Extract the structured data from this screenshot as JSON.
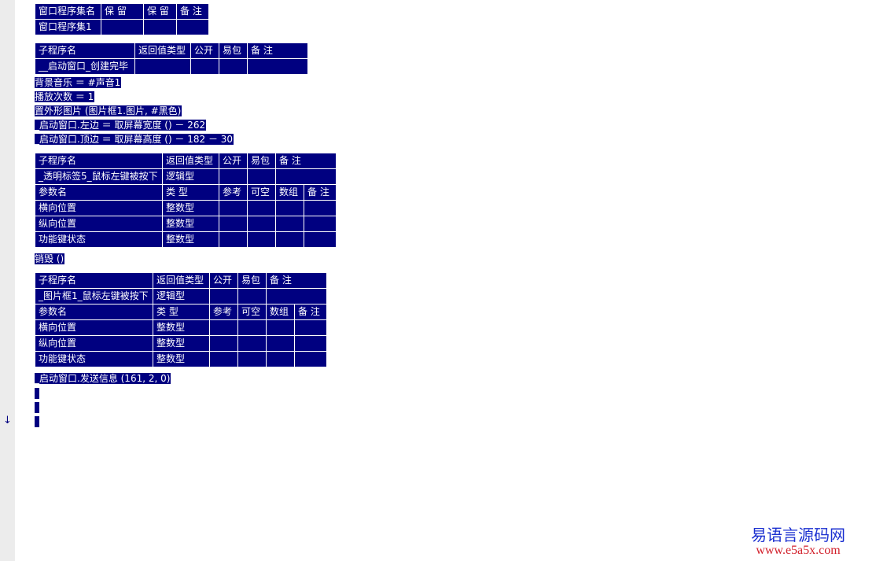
{
  "assembly_table": {
    "headers": [
      "窗口程序集名",
      "保 留",
      "保 留",
      "备 注"
    ],
    "row": [
      "窗口程序集1",
      "",
      "",
      ""
    ]
  },
  "sub1": {
    "headers": [
      "子程序名",
      "返回值类型",
      "公开",
      "易包",
      "备 注"
    ],
    "row": [
      "__启动窗口_创建完毕",
      "",
      "",
      "",
      ""
    ]
  },
  "code1": [
    "背景音乐 ＝ #声音1",
    "播放次数 ＝ 1",
    "置外形图片 (图片框1.图片, #黑色)",
    "_启动窗口.左边 ＝ 取屏幕宽度 () － 262",
    "_启动窗口.顶边 ＝ 取屏幕高度 () － 182 － 30"
  ],
  "sub2": {
    "headers": [
      "子程序名",
      "返回值类型",
      "公开",
      "易包",
      "备 注"
    ],
    "row": [
      "_透明标签5_鼠标左键被按下",
      "逻辑型",
      "",
      "",
      ""
    ],
    "param_headers": [
      "参数名",
      "类 型",
      "参考",
      "可空",
      "数组",
      "备 注"
    ],
    "params": [
      [
        "横向位置",
        "整数型"
      ],
      [
        "纵向位置",
        "整数型"
      ],
      [
        "功能键状态",
        "整数型"
      ]
    ]
  },
  "code2": [
    "销毁 ()"
  ],
  "sub3": {
    "headers": [
      "子程序名",
      "返回值类型",
      "公开",
      "易包",
      "备 注"
    ],
    "row": [
      "_图片框1_鼠标左键被按下",
      "逻辑型",
      "",
      "",
      ""
    ],
    "param_headers": [
      "参数名",
      "类 型",
      "参考",
      "可空",
      "数组",
      "备 注"
    ],
    "params": [
      [
        "横向位置",
        "整数型"
      ],
      [
        "纵向位置",
        "整数型"
      ],
      [
        "功能键状态",
        "整数型"
      ]
    ]
  },
  "code3": [
    "_启动窗口.发送信息 (161, 2, 0)"
  ],
  "gutter": {
    "arrow_icon": "down-arrow-icon",
    "arrow": "↓"
  },
  "watermark": {
    "name": "易语言源码网",
    "url": "www.e5a5x.com"
  },
  "colors": {
    "cell_bg": "#000080",
    "gutter": "#ececec",
    "watermark_cn": "#1a2fd0",
    "watermark_url": "#d21f2a"
  }
}
